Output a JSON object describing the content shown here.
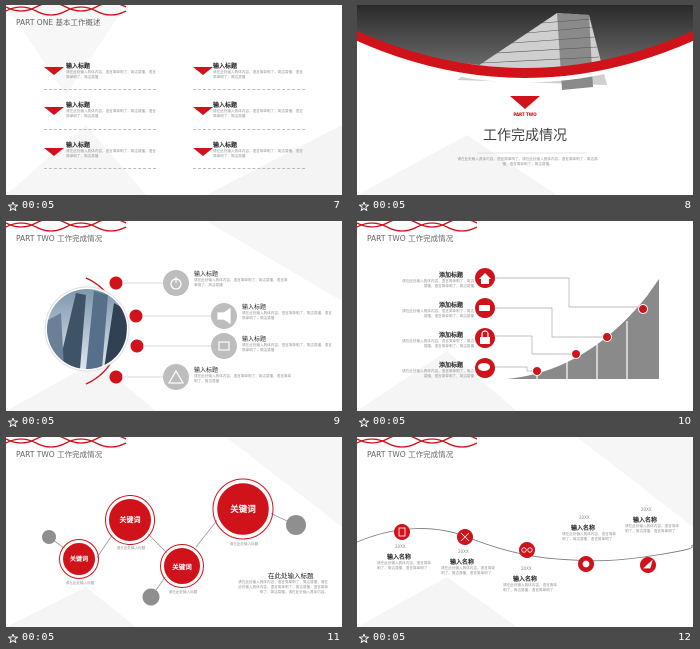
{
  "slides": [
    {
      "number": "7",
      "time": "00:05",
      "title": "PART ONE 基本工作概述",
      "items": [
        {
          "heading": "输入标题",
          "body": "请在此处输入具体内容，语言简单明了，简洁易懂，语言简单明了，简洁易懂"
        },
        {
          "heading": "输入标题",
          "body": "请在此处输入具体内容，语言简单明了，简洁易懂，语言简单明了，简洁易懂"
        },
        {
          "heading": "输入标题",
          "body": "请在此处输入具体内容，语言简单明了，简洁易懂，语言简单明了，简洁易懂"
        },
        {
          "heading": "输入标题",
          "body": "请在此处输入具体内容，语言简单明了，简洁易懂，语言简单明了，简洁易懂"
        },
        {
          "heading": "输入标题",
          "body": "请在此处输入具体内容，语言简单明了，简洁易懂，语言简单明了，简洁易懂"
        },
        {
          "heading": "输入标题",
          "body": "请在此处输入具体内容，语言简单明了，简洁易懂，语言简单明了，简洁易懂"
        }
      ]
    },
    {
      "number": "8",
      "time": "00:05",
      "part": "PART TWO",
      "title": "工作完成情况",
      "body": "请在此处输入具体内容，语言简单明了，请在此处输入具体内容，语言简单明了，简洁易懂，语言简单明了，简洁易懂。"
    },
    {
      "number": "9",
      "time": "00:05",
      "title": "PART TWO 工作完成情况",
      "items": [
        {
          "heading": "输入标题",
          "body": "请在此处输入具体内容，语言简单明了，简洁易懂，语言简单明了，简洁易懂"
        },
        {
          "heading": "输入标题",
          "body": "请在此处输入具体内容，语言简单明了，简洁易懂，语言简单明了，简洁易懂"
        },
        {
          "heading": "输入标题",
          "body": "请在此处输入具体内容，语言简单明了，简洁易懂，语言简单明了，简洁易懂"
        },
        {
          "heading": "输入标题",
          "body": "请在此处输入具体内容，语言简单明了，简洁易懂，语言简单明了，简洁易懂"
        }
      ]
    },
    {
      "number": "10",
      "time": "00:05",
      "title": "PART TWO 工作完成情况",
      "items": [
        {
          "heading": "添加标题",
          "body": "请在此处输入具体内容，语言简单明了，简洁易懂，语言简单明了，简洁易懂"
        },
        {
          "heading": "添加标题",
          "body": "请在此处输入具体内容，语言简单明了，简洁易懂，语言简单明了，简洁易懂"
        },
        {
          "heading": "添加标题",
          "body": "请在此处输入具体内容，语言简单明了，简洁易懂，语言简单明了，简洁易懂"
        },
        {
          "heading": "添加标题",
          "body": "请在此处输入具体内容，语言简单明了，简洁易懂，语言简单明了，简洁易懂"
        }
      ]
    },
    {
      "number": "11",
      "time": "00:05",
      "title": "PART TWO 工作完成情况",
      "keywords": [
        "关键词",
        "关键词",
        "关键词",
        "关键词"
      ],
      "captions": [
        "请在此处输入标题",
        "请在此处输入标题",
        "请在此处输入标题",
        "请在此处输入标题"
      ],
      "heading": "在此处输入标题",
      "body": "请在此处输入具体内容，语言简单明了，简洁易懂，请在此处输入具体内容，语言简单明了，简洁易懂，语言简单明了，简洁易懂。请在此处输入具体内容。"
    },
    {
      "number": "12",
      "time": "00:05",
      "title": "PART TWO 工作完成情况",
      "items": [
        {
          "year": "20XX",
          "heading": "输入名称",
          "body": "请在此处输入具体内容，语言简单明了，简洁易懂，语言简单明了"
        },
        {
          "year": "20XX",
          "heading": "输入名称",
          "body": "请在此处输入具体内容，语言简单明了，简洁易懂，语言简单明了"
        },
        {
          "year": "20XX",
          "heading": "输入名称",
          "body": "请在此处输入具体内容，语言简单明了，简洁易懂，语言简单明了"
        },
        {
          "year": "20XX",
          "heading": "输入名称",
          "body": "请在此处输入具体内容，语言简单明了，简洁易懂，语言简单明了"
        },
        {
          "year": "20XX",
          "heading": "输入名称",
          "body": "请在此处输入具体内容，语言简单明了，简洁易懂，语言简单明了"
        }
      ]
    }
  ],
  "colors": {
    "accent": "#d0121b",
    "grey": "#9a9a9a",
    "dark": "#4a4a4a"
  }
}
